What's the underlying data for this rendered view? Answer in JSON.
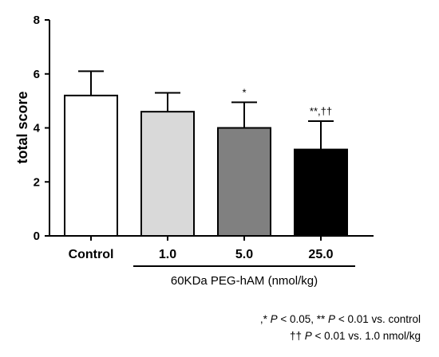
{
  "chart_data": {
    "type": "bar",
    "categories": [
      "Control",
      "1.0",
      "5.0",
      "25.0"
    ],
    "values": [
      5.2,
      4.6,
      4.0,
      3.2
    ],
    "errors": [
      0.9,
      0.7,
      0.95,
      1.05
    ],
    "significance": [
      "",
      "",
      "*",
      "**,††"
    ],
    "colors": [
      "#ffffff",
      "#d9d9d9",
      "#808080",
      "#000000"
    ],
    "ylabel": "total score",
    "ylim": [
      0,
      8
    ],
    "yticks": [
      0,
      2,
      4,
      6,
      8
    ],
    "group_label": "60KDa PEG-hAM (nmol/kg)",
    "grid": false
  },
  "footnotes": {
    "line1": {
      "pre": ",* ",
      "p1": "P",
      "mid": " < 0.05, ** ",
      "p2": "P",
      "post": " < 0.01 vs. control"
    },
    "line2": {
      "pre": "†† ",
      "p1": "P",
      "post": " < 0.01 vs. 1.0 nmol/kg"
    }
  }
}
